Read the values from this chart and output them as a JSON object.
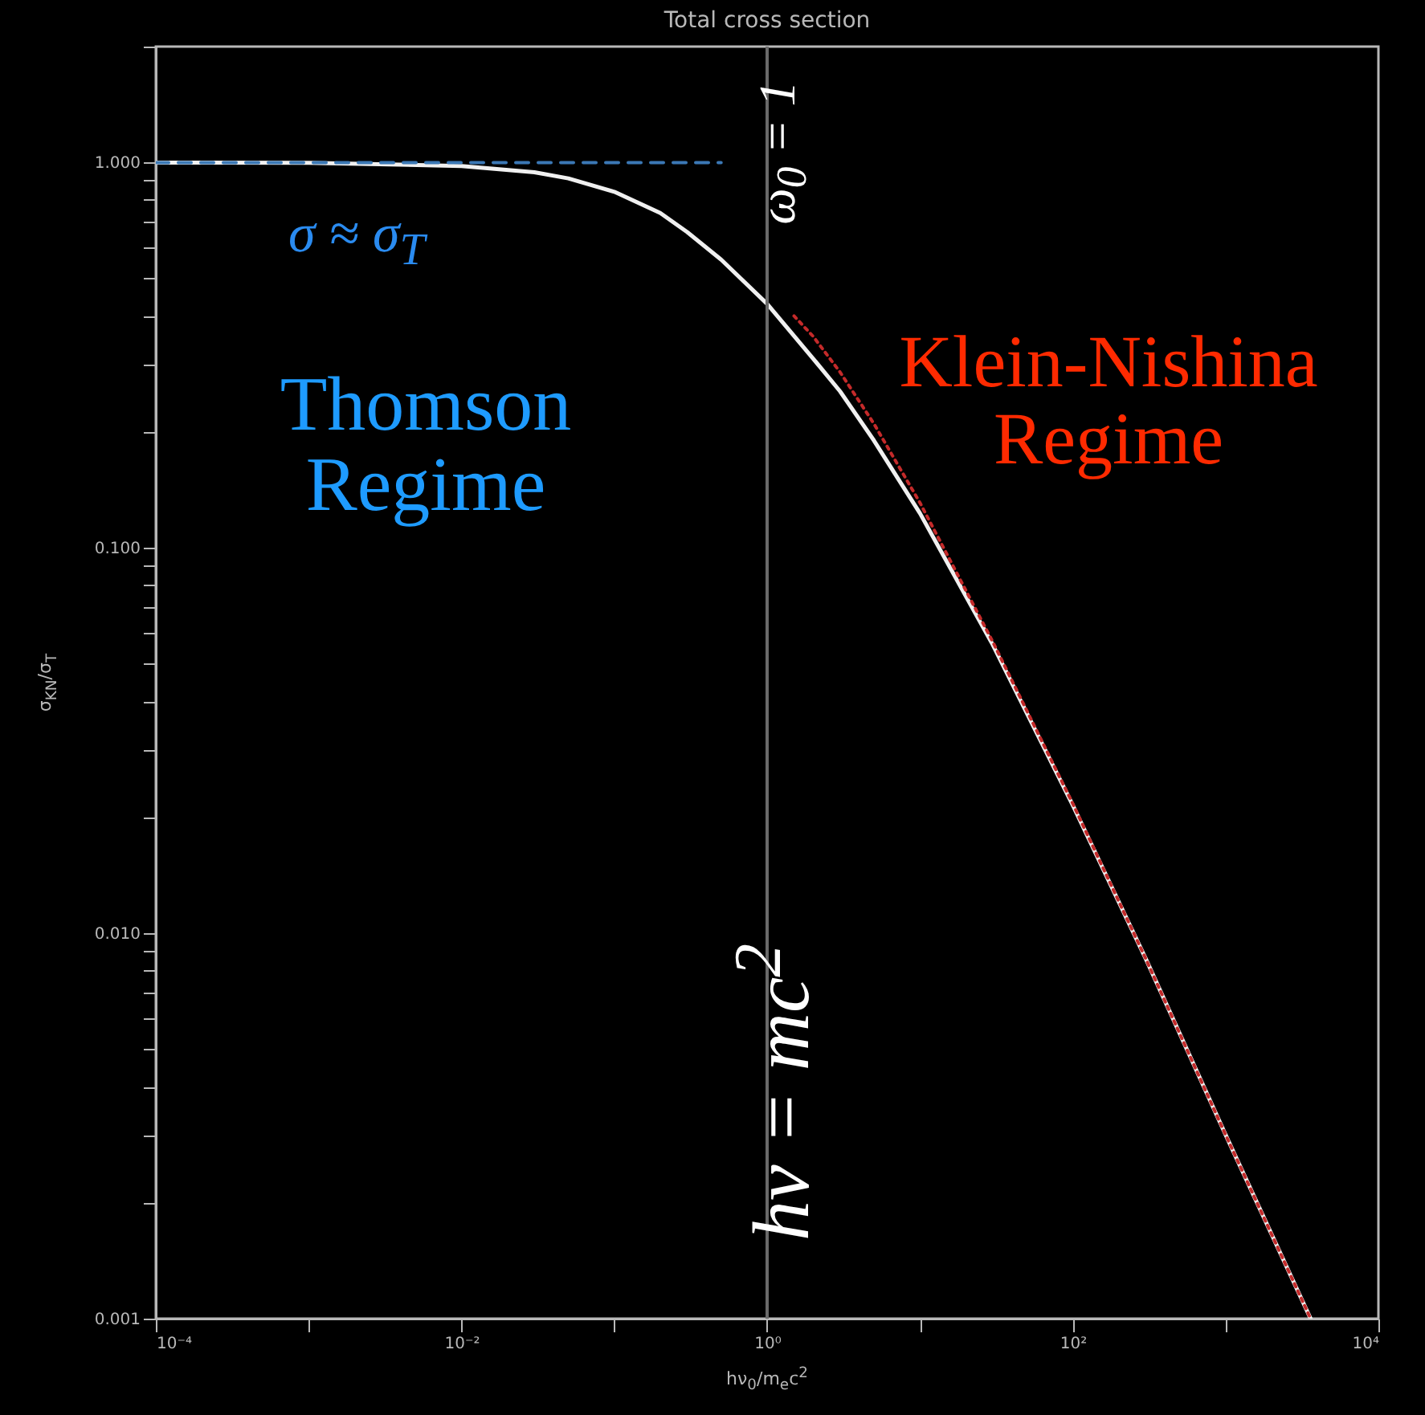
{
  "chart_data": {
    "type": "line",
    "title": "Total cross section",
    "xlabel": "hν$_{0}$/m$_{e}$c$^{2}$",
    "ylabel": "σ$_{KN}$/σ$_{T}$",
    "log": "xy",
    "grid": false,
    "marker": "none",
    "xlim": [
      0.0001,
      10000
    ],
    "ylim": [
      0.001,
      2
    ],
    "xticks": [
      {
        "value": 0.0001,
        "label": "10⁻⁴"
      },
      {
        "value": 0.001,
        "label": null
      },
      {
        "value": 0.01,
        "label": "10⁻²"
      },
      {
        "value": 0.1,
        "label": null
      },
      {
        "value": 1,
        "label": "10⁰"
      },
      {
        "value": 10,
        "label": null
      },
      {
        "value": 100,
        "label": "10²"
      },
      {
        "value": 1000,
        "label": null
      },
      {
        "value": 10000,
        "label": "10⁴"
      }
    ],
    "yticks": [
      {
        "value": 0.001,
        "label": "0.001"
      },
      {
        "value": 0.002,
        "label": null
      },
      {
        "value": 0.003,
        "label": null
      },
      {
        "value": 0.004,
        "label": null
      },
      {
        "value": 0.005,
        "label": null
      },
      {
        "value": 0.006,
        "label": null
      },
      {
        "value": 0.007,
        "label": null
      },
      {
        "value": 0.008,
        "label": null
      },
      {
        "value": 0.009,
        "label": null
      },
      {
        "value": 0.01,
        "label": "0.010"
      },
      {
        "value": 0.02,
        "label": null
      },
      {
        "value": 0.03,
        "label": null
      },
      {
        "value": 0.04,
        "label": null
      },
      {
        "value": 0.05,
        "label": null
      },
      {
        "value": 0.06,
        "label": null
      },
      {
        "value": 0.07,
        "label": null
      },
      {
        "value": 0.08,
        "label": null
      },
      {
        "value": 0.09,
        "label": null
      },
      {
        "value": 0.1,
        "label": "0.100"
      },
      {
        "value": 0.2,
        "label": null
      },
      {
        "value": 0.3,
        "label": null
      },
      {
        "value": 0.4,
        "label": null
      },
      {
        "value": 0.5,
        "label": null
      },
      {
        "value": 0.6,
        "label": null
      },
      {
        "value": 0.7,
        "label": null
      },
      {
        "value": 0.8,
        "label": null
      },
      {
        "value": 0.9,
        "label": null
      },
      {
        "value": 1,
        "label": "1.000"
      },
      {
        "value": 2,
        "label": null
      }
    ],
    "series": [
      {
        "color": "#f0f0f0",
        "line_style": "solid",
        "x": [
          0.0001,
          0.001,
          0.01,
          0.03,
          0.05,
          0.1,
          0.2,
          0.3,
          0.5,
          1,
          2,
          3,
          5,
          10,
          30,
          100,
          300,
          1000,
          3600
        ],
        "values": [
          1.0,
          0.998,
          0.98,
          0.944,
          0.91,
          0.84,
          0.74,
          0.66,
          0.56,
          0.43,
          0.31,
          0.255,
          0.19,
          0.123,
          0.056,
          0.0215,
          0.0086,
          0.003,
          0.001
        ]
      },
      {
        "color": "#c42a2a",
        "line_style": "dotted",
        "x": [
          1.5,
          2,
          3,
          5,
          10,
          30,
          100,
          300,
          1000,
          3600
        ],
        "values": [
          0.4,
          0.354,
          0.286,
          0.21,
          0.131,
          0.057,
          0.0217,
          0.0086,
          0.003,
          0.001
        ]
      },
      {
        "color": "#3b78b5",
        "line_style": "dashed",
        "x": [
          0.0001,
          0.5
        ],
        "values": [
          1,
          1
        ]
      }
    ],
    "ref_lines": [
      {
        "axis": "x",
        "value": 1,
        "color": "#6a6a6a"
      }
    ],
    "annotations": [
      "σ ≈ σ$_{T}$",
      "Thomson Regime",
      "Klein-Nishina Regime",
      "hν = mc$^{2}$",
      "ω$_{0}$ = 1"
    ]
  }
}
